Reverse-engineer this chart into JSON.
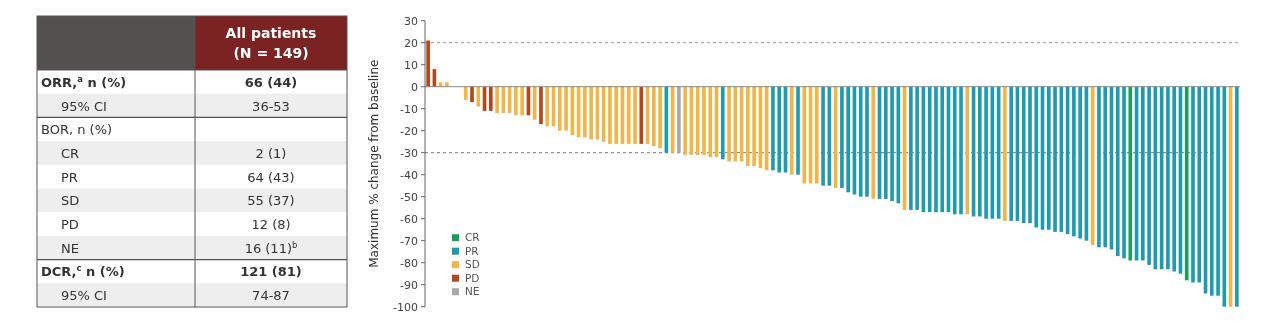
{
  "chart_data": [
    {
      "type": "other",
      "title": "All patients",
      "subtitle": "(N = 149)",
      "categories": [
        "ORR,$^{a}$ n (%)",
        "95% CI",
        "BOR, n (%)",
        "CR",
        "PR",
        "SD",
        "PD",
        "NE",
        "DCR,$^{c}$ n (%)",
        "95% CI"
      ],
      "value_labels": [
        "66 (44)",
        "36-53",
        null,
        "2 (1)",
        "64 (43)",
        "55 (37)",
        "12 (8)",
        "16 (11)$^{b}$",
        "121 (81)",
        "74-87"
      ]
    },
    {
      "type": "bar",
      "ylabel": "Maximum % change from baseline",
      "stacked": true,
      "legend": "bottom left",
      "ylim": [
        -100,
        30
      ],
      "yticks": [
        -100,
        -90,
        -80,
        -70,
        -60,
        -50,
        -40,
        -30,
        -20,
        -10,
        0,
        10,
        20,
        30
      ],
      "ref_lines": [
        {
          "axis": "y",
          "value": 20,
          "color": "#999999",
          "line_style": "dashed"
        },
        {
          "axis": "y",
          "value": -30,
          "color": "#777777",
          "line_style": "dashed"
        }
      ],
      "categories": [
        null,
        null,
        null,
        null,
        null,
        null,
        null,
        null,
        null,
        null,
        null,
        null,
        null,
        null,
        null,
        null,
        null,
        null,
        null,
        null,
        null,
        null,
        null,
        null,
        null,
        null,
        null,
        null,
        null,
        null,
        null,
        null,
        null,
        null,
        null,
        null,
        null,
        null,
        null,
        null,
        null,
        null,
        null,
        null,
        null,
        null,
        null,
        null,
        null,
        null,
        null,
        null,
        null,
        null,
        null,
        null,
        null,
        null,
        null,
        null,
        null,
        null,
        null,
        null,
        null,
        null,
        null,
        null,
        null,
        null,
        null,
        null,
        null,
        null,
        null,
        null,
        null,
        null,
        null,
        null,
        null,
        null,
        null,
        null,
        null,
        null,
        null,
        null,
        null,
        null,
        null,
        null,
        null,
        null,
        null,
        null,
        null,
        null,
        null,
        null,
        null,
        null,
        null,
        null,
        null,
        null,
        null,
        null,
        null,
        null,
        null,
        null,
        null,
        null,
        null,
        null,
        null,
        null,
        null,
        null,
        null,
        null,
        null,
        null,
        null,
        null,
        null,
        null,
        null,
        null
      ],
      "series": [
        {
          "name": "CR",
          "color": "#1a9e5a",
          "values": [
            null,
            null,
            null,
            null,
            null,
            null,
            null,
            null,
            null,
            null,
            null,
            null,
            null,
            null,
            null,
            null,
            null,
            null,
            null,
            null,
            null,
            null,
            null,
            null,
            null,
            null,
            null,
            null,
            null,
            null,
            null,
            null,
            null,
            null,
            null,
            null,
            null,
            null,
            null,
            null,
            null,
            null,
            null,
            null,
            null,
            null,
            null,
            null,
            null,
            null,
            null,
            null,
            null,
            null,
            null,
            null,
            null,
            null,
            null,
            null,
            null,
            null,
            null,
            null,
            null,
            null,
            null,
            null,
            null,
            null,
            null,
            null,
            null,
            null,
            null,
            null,
            null,
            null,
            null,
            null,
            null,
            null,
            null,
            null,
            null,
            null,
            null,
            null,
            null,
            null,
            null,
            null,
            null,
            null,
            null,
            null,
            null,
            null,
            null,
            null,
            null,
            null,
            null,
            null,
            null,
            null,
            null,
            null,
            null,
            null,
            null,
            null,
            -79,
            null,
            null,
            null,
            null,
            null,
            null,
            null,
            null,
            -88,
            null,
            null,
            null,
            null,
            null,
            null,
            null,
            null
          ]
        },
        {
          "name": "PR",
          "color": "#1f9bb0",
          "values": [
            null,
            null,
            null,
            null,
            null,
            null,
            null,
            null,
            null,
            null,
            null,
            null,
            null,
            null,
            null,
            null,
            null,
            null,
            null,
            null,
            null,
            null,
            null,
            null,
            null,
            null,
            null,
            null,
            null,
            null,
            null,
            null,
            null,
            null,
            null,
            null,
            null,
            null,
            -30,
            null,
            null,
            null,
            null,
            null,
            null,
            null,
            null,
            -33,
            null,
            null,
            null,
            null,
            null,
            null,
            null,
            -38,
            -39,
            -39,
            null,
            -40,
            null,
            null,
            null,
            -45,
            -45,
            null,
            -46,
            -48,
            -49,
            -50,
            -50,
            null,
            -51,
            -51,
            -52,
            -53,
            null,
            -56,
            -56,
            -57,
            -57,
            -57,
            -57,
            -57,
            -58,
            -58,
            null,
            -59,
            -59,
            -60,
            -60,
            -60,
            null,
            -61,
            -61,
            -62,
            -62,
            -64,
            -65,
            -65,
            -66,
            -66,
            -67,
            -68,
            -69,
            -70,
            null,
            -73,
            -73,
            -74,
            -77,
            -78,
            null,
            -79,
            -79,
            -81,
            -83,
            -83,
            -83,
            -84,
            -85,
            null,
            -89,
            -89,
            -94,
            -95,
            -95,
            -100,
            null,
            -100
          ]
        },
        {
          "name": "SD",
          "color": "#f0b64a",
          "values": [
            null,
            null,
            2,
            2,
            null,
            null,
            -6,
            null,
            -9,
            null,
            null,
            -12,
            -12,
            -12,
            -13,
            -13,
            null,
            -15,
            null,
            -18,
            -18,
            -20,
            -20,
            -22,
            -23,
            -23,
            -24,
            -24,
            -25,
            -26,
            -26,
            -26,
            -26,
            -26,
            null,
            -26,
            -27,
            -28,
            null,
            -30,
            null,
            -31,
            -31,
            -31,
            -31,
            -32,
            -32,
            null,
            -34,
            -34,
            -34,
            -36,
            -36,
            -37,
            -38,
            null,
            null,
            null,
            -40,
            null,
            -44,
            -44,
            -44,
            null,
            null,
            -46,
            null,
            null,
            null,
            null,
            null,
            -51,
            null,
            null,
            null,
            null,
            -56,
            null,
            null,
            null,
            null,
            null,
            null,
            null,
            null,
            null,
            -58,
            null,
            null,
            null,
            null,
            null,
            -61,
            null,
            null,
            null,
            null,
            null,
            null,
            null,
            null,
            null,
            null,
            null,
            null,
            null,
            -72,
            null,
            null,
            null,
            null,
            null,
            null,
            null,
            null,
            null,
            null,
            null,
            null,
            null,
            null,
            null,
            null,
            null,
            null,
            null,
            null,
            null,
            -100,
            null
          ]
        },
        {
          "name": "PD",
          "color": "#b5461c",
          "values": [
            21,
            8,
            null,
            null,
            null,
            null,
            null,
            -7,
            null,
            -11,
            -11,
            null,
            null,
            null,
            null,
            null,
            -13,
            null,
            -17,
            null,
            null,
            null,
            null,
            null,
            null,
            null,
            null,
            null,
            null,
            null,
            null,
            null,
            null,
            null,
            -26,
            null,
            null,
            null,
            null,
            null,
            null,
            null,
            null,
            null,
            null,
            null,
            null,
            null,
            null,
            null,
            null,
            null,
            null,
            null,
            null,
            null,
            null,
            null,
            null,
            null,
            null,
            null,
            null,
            null,
            null,
            null,
            null,
            null,
            null,
            null,
            null,
            null,
            null,
            null,
            null,
            null,
            null,
            null,
            null,
            null,
            null,
            null,
            null,
            null,
            null,
            null,
            null,
            null,
            null,
            null,
            null,
            null,
            null,
            null,
            null,
            null,
            null,
            null,
            null,
            null,
            null,
            null,
            null,
            null,
            null,
            null,
            null,
            null,
            null,
            null,
            null,
            null,
            null,
            null,
            null,
            null,
            null,
            null,
            null,
            null,
            null,
            null,
            null,
            null,
            null,
            null,
            null,
            null,
            null,
            null
          ]
        },
        {
          "name": "NE",
          "color": "#a8a8a8",
          "values": [
            null,
            null,
            null,
            null,
            null,
            null,
            null,
            null,
            null,
            null,
            null,
            null,
            null,
            null,
            null,
            null,
            null,
            null,
            null,
            null,
            null,
            null,
            null,
            null,
            null,
            null,
            null,
            null,
            null,
            null,
            null,
            null,
            null,
            null,
            null,
            null,
            null,
            null,
            null,
            null,
            -30,
            null,
            null,
            null,
            null,
            null,
            null,
            null,
            null,
            null,
            null,
            null,
            null,
            null,
            null,
            null,
            null,
            null,
            null,
            null,
            null,
            null,
            null,
            null,
            null,
            null,
            null,
            null,
            null,
            null,
            null,
            null,
            null,
            null,
            null,
            null,
            null,
            null,
            null,
            null,
            null,
            null,
            null,
            null,
            null,
            null,
            null,
            null,
            null,
            null,
            null,
            null,
            null,
            null,
            null,
            null,
            null,
            null,
            null,
            null,
            null,
            null,
            null,
            null,
            null,
            null,
            null,
            null,
            null,
            null,
            null,
            null,
            null,
            null,
            null,
            null,
            null,
            null,
            null,
            null,
            null,
            null,
            null,
            null,
            null,
            null,
            null,
            null,
            null,
            null
          ]
        }
      ]
    }
  ]
}
